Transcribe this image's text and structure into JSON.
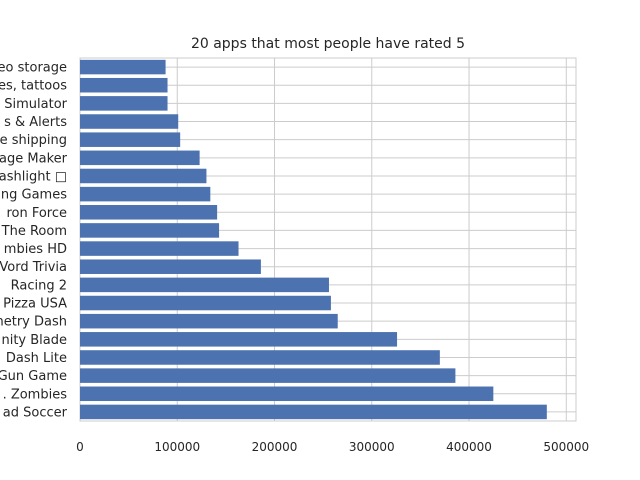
{
  "chart_data": {
    "type": "bar",
    "orientation": "horizontal",
    "title": "20 apps that most people have rated 5",
    "xlabel": "",
    "ylabel": "",
    "xlim": [
      0,
      510000
    ],
    "x_ticks": [
      0,
      100000,
      200000,
      300000,
      400000,
      500000
    ],
    "x_tick_labels": [
      "0",
      "100000",
      "200000",
      "300000",
      "400000",
      "500000"
    ],
    "grid": true,
    "bar_color": "#4c72b0",
    "categories": [
      "ad Soccer",
      ". Zombies",
      "Gun Game",
      "Dash Lite",
      "nity Blade",
      "netry Dash",
      "Pizza USA",
      "Racing 2",
      "Vord Trivia",
      "mbies HD",
      "The Room",
      "ron Force",
      "ng Games",
      "ashlight □",
      "age Maker",
      "e shipping",
      "s & Alerts",
      "Simulator",
      "es, tattoos",
      "eo storage"
    ],
    "values": [
      480000,
      425000,
      386000,
      370000,
      326000,
      265000,
      258000,
      256000,
      186000,
      163000,
      143000,
      141000,
      134000,
      130000,
      123000,
      103000,
      101000,
      90000,
      90000,
      88000
    ]
  }
}
